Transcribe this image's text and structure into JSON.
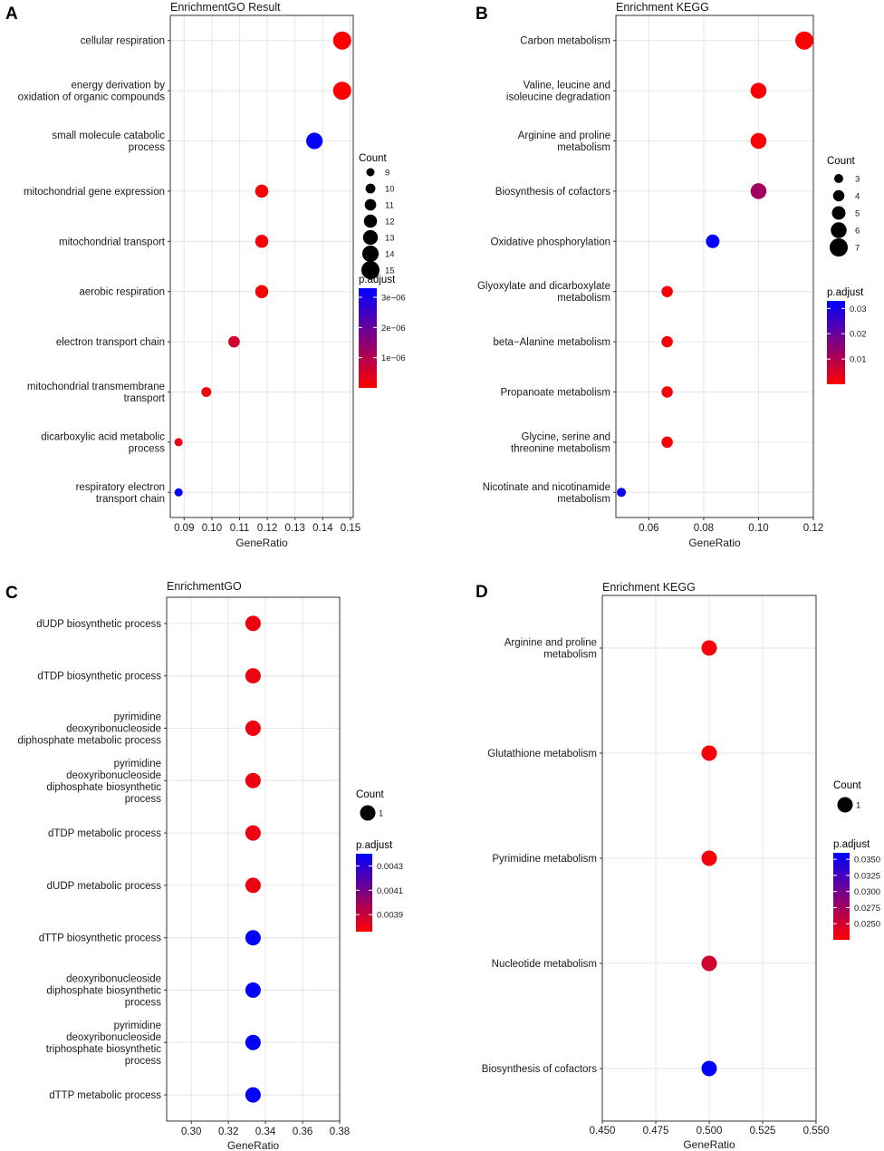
{
  "colors": {
    "low": "#ff0000",
    "high": "#0000ff",
    "grid": "#e6e6e6",
    "frame": "#333333"
  },
  "chart_data": [
    {
      "panel": "A",
      "type": "scatter",
      "title": "EnrichmentGO Result",
      "xlabel": "GeneRatio",
      "xlim": [
        0.085,
        0.151
      ],
      "xticks": [
        0.09,
        0.1,
        0.11,
        0.12,
        0.13,
        0.14,
        0.15
      ],
      "xtick_labels": [
        "0.09",
        "0.10",
        "0.11",
        "0.12",
        "0.13",
        "0.14",
        "0.15"
      ],
      "categories": [
        [
          "cellular respiration"
        ],
        [
          "energy derivation by",
          "oxidation of organic compounds"
        ],
        [
          "small molecule catabolic",
          "process"
        ],
        [
          "mitochondrial gene expression"
        ],
        [
          "mitochondrial transport"
        ],
        [
          "aerobic respiration"
        ],
        [
          "electron transport chain"
        ],
        [
          "mitochondrial transmembrane",
          "transport"
        ],
        [
          "dicarboxylic acid metabolic",
          "process"
        ],
        [
          "respiratory electron",
          "transport chain"
        ]
      ],
      "x": [
        0.147,
        0.147,
        0.137,
        0.118,
        0.118,
        0.118,
        0.108,
        0.098,
        0.088,
        0.088
      ],
      "count": [
        15,
        15,
        14,
        12,
        12,
        12,
        11,
        10,
        9,
        9
      ],
      "p_adjust": [
        0.0,
        0.0,
        3.3e-06,
        1e-07,
        1e-07,
        1e-07,
        6e-07,
        1e-07,
        3e-07,
        3.3e-06
      ],
      "size_legend": {
        "title": "Count",
        "values": [
          9,
          10,
          11,
          12,
          13,
          14,
          15
        ],
        "labels": [
          "9",
          "10",
          "11",
          "12",
          "13",
          "14",
          "15"
        ]
      },
      "color_legend": {
        "title": "p.adjust",
        "min": 0.0,
        "max": 3.3e-06,
        "ticks": [
          1e-06,
          2e-06,
          3e-06
        ],
        "labels": [
          "1e−06",
          "2e−06",
          "3e−06"
        ]
      }
    },
    {
      "panel": "B",
      "type": "scatter",
      "title": "Enrichment KEGG",
      "xlabel": "GeneRatio",
      "xlim": [
        0.048,
        0.12
      ],
      "xticks": [
        0.06,
        0.08,
        0.1,
        0.12
      ],
      "xtick_labels": [
        "0.06",
        "0.08",
        "0.10",
        "0.12"
      ],
      "categories": [
        [
          "Carbon metabolism"
        ],
        [
          "Valine, leucine and",
          "isoleucine degradation"
        ],
        [
          "Arginine and proline",
          "metabolism"
        ],
        [
          "Biosynthesis of cofactors"
        ],
        [
          "Oxidative phosphorylation"
        ],
        [
          "Glyoxylate and dicarboxylate",
          "metabolism"
        ],
        [
          "beta−Alanine metabolism"
        ],
        [
          "Propanoate metabolism"
        ],
        [
          "Glycine, serine and",
          "threonine metabolism"
        ],
        [
          "Nicotinate and nicotinamide",
          "metabolism"
        ]
      ],
      "x": [
        0.1167,
        0.1,
        0.1,
        0.1,
        0.0833,
        0.0667,
        0.0667,
        0.0667,
        0.0667,
        0.05
      ],
      "count": [
        7,
        6,
        6,
        6,
        5,
        4,
        4,
        4,
        4,
        3
      ],
      "p_adjust": [
        0.0003,
        0.0005,
        0.0005,
        0.012,
        0.033,
        0.0008,
        0.0008,
        0.0008,
        0.001,
        0.031
      ],
      "size_legend": {
        "title": "Count",
        "values": [
          3,
          4,
          5,
          6,
          7
        ],
        "labels": [
          "3",
          "4",
          "5",
          "6",
          "7"
        ]
      },
      "color_legend": {
        "title": "p.adjust",
        "min": 0.0,
        "max": 0.033,
        "ticks": [
          0.01,
          0.02,
          0.03
        ],
        "labels": [
          "0.01",
          "0.02",
          "0.03"
        ]
      }
    },
    {
      "panel": "C",
      "type": "scatter",
      "title": "EnrichmentGO",
      "xlabel": "GeneRatio",
      "xlim": [
        0.2867,
        0.38
      ],
      "xticks": [
        0.3,
        0.32,
        0.34,
        0.36,
        0.38
      ],
      "xtick_labels": [
        "0.30",
        "0.32",
        "0.34",
        "0.36",
        "0.38"
      ],
      "categories": [
        [
          "dUDP biosynthetic process"
        ],
        [
          "dTDP biosynthetic process"
        ],
        [
          "pyrimidine",
          "deoxyribonucleoside",
          "diphosphate metabolic process"
        ],
        [
          "pyrimidine",
          "deoxyribonucleoside",
          "diphosphate biosynthetic",
          "process"
        ],
        [
          "dTDP metabolic process"
        ],
        [
          "dUDP metabolic process"
        ],
        [
          "dTTP biosynthetic process"
        ],
        [
          "deoxyribonucleoside",
          "diphosphate biosynthetic",
          "process"
        ],
        [
          "pyrimidine",
          "deoxyribonucleoside",
          "triphosphate biosynthetic",
          "process"
        ],
        [
          "dTTP metabolic process"
        ]
      ],
      "x": [
        0.3333,
        0.3333,
        0.3333,
        0.3333,
        0.3333,
        0.3333,
        0.3333,
        0.3333,
        0.3333,
        0.3333
      ],
      "count": [
        1,
        1,
        1,
        1,
        1,
        1,
        1,
        1,
        1,
        1
      ],
      "p_adjust": [
        0.0038,
        0.0038,
        0.0038,
        0.0038,
        0.0038,
        0.0038,
        0.0044,
        0.0044,
        0.0044,
        0.0044
      ],
      "size_legend": {
        "title": "Count",
        "values": [
          1
        ],
        "labels": [
          "1"
        ]
      },
      "color_legend": {
        "title": "p.adjust",
        "min": 0.00376,
        "max": 0.0044,
        "ticks": [
          0.0039,
          0.0041,
          0.0043
        ],
        "labels": [
          "0.0039",
          "0.0041",
          "0.0043"
        ]
      }
    },
    {
      "panel": "D",
      "type": "scatter",
      "title": "Enrichment KEGG",
      "xlabel": "GeneRatio",
      "xlim": [
        0.45,
        0.55
      ],
      "xticks": [
        0.45,
        0.475,
        0.5,
        0.525,
        0.55
      ],
      "xtick_labels": [
        "0.450",
        "0.475",
        "0.500",
        "0.525",
        "0.550"
      ],
      "categories": [
        [
          "Arginine and proline",
          "metabolism"
        ],
        [
          "Glutathione metabolism"
        ],
        [
          "Pyrimidine metabolism"
        ],
        [
          "Nucleotide metabolism"
        ],
        [
          "Biosynthesis of cofactors"
        ]
      ],
      "x": [
        0.5,
        0.5,
        0.5,
        0.5,
        0.5
      ],
      "count": [
        1,
        1,
        1,
        1,
        1
      ],
      "p_adjust": [
        0.023,
        0.023,
        0.023,
        0.025,
        0.036
      ],
      "size_legend": {
        "title": "Count",
        "values": [
          1
        ],
        "labels": [
          "1"
        ]
      },
      "color_legend": {
        "title": "p.adjust",
        "min": 0.0225,
        "max": 0.036,
        "ticks": [
          0.025,
          0.0275,
          0.03,
          0.0325,
          0.035
        ],
        "labels": [
          "0.0250",
          "0.0275",
          "0.0300",
          "0.0325",
          "0.0350"
        ]
      }
    }
  ]
}
